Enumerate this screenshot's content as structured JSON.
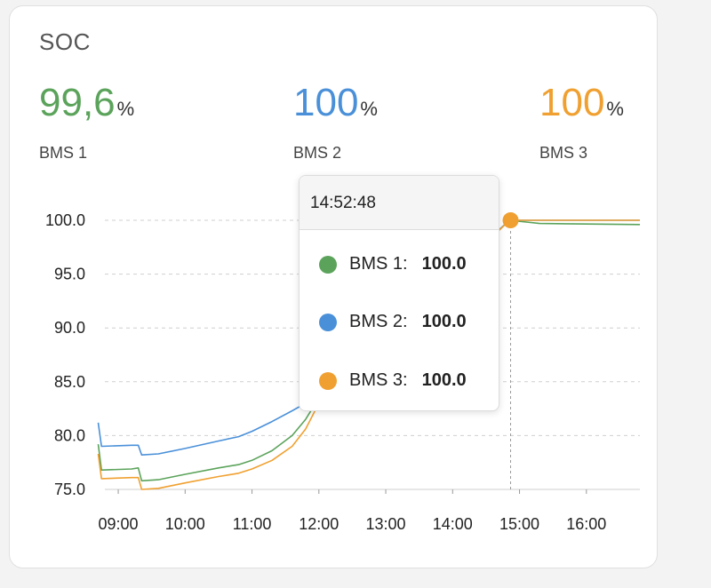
{
  "card": {
    "title": "SOC"
  },
  "stats": [
    {
      "name": "BMS 1",
      "value": "99,6",
      "unit": "%",
      "color": "#5ba35b"
    },
    {
      "name": "BMS 2",
      "value": "100",
      "unit": "%",
      "color": "#4a90d9"
    },
    {
      "name": "BMS 3",
      "value": "100",
      "unit": "%",
      "color": "#f0a030"
    }
  ],
  "tooltip": {
    "time": "14:52:48",
    "rows": [
      {
        "label": "BMS 1:",
        "value": "100.0"
      },
      {
        "label": "BMS 2:",
        "value": "100.0"
      },
      {
        "label": "BMS 3:",
        "value": "100.0"
      }
    ]
  },
  "chart_data": {
    "type": "line",
    "ylim": [
      75,
      100
    ],
    "yticks": [
      "100.0",
      "95.0",
      "90.0",
      "85.0",
      "80.0",
      "75.0"
    ],
    "xticks": [
      "09:00",
      "10:00",
      "11:00",
      "12:00",
      "13:00",
      "14:00",
      "15:00",
      "16:00"
    ],
    "grid": true,
    "legend": "none",
    "highlight": {
      "x": "14:52",
      "y": 100.0
    },
    "series": [
      {
        "name": "BMS 1",
        "color": "#5ba35b",
        "points": [
          [
            8.7,
            79.2
          ],
          [
            8.75,
            76.8
          ],
          [
            9.2,
            76.9
          ],
          [
            9.3,
            77.0
          ],
          [
            9.35,
            75.8
          ],
          [
            9.6,
            75.9
          ],
          [
            10.0,
            76.4
          ],
          [
            10.5,
            77.0
          ],
          [
            10.8,
            77.3
          ],
          [
            11.0,
            77.7
          ],
          [
            11.3,
            78.6
          ],
          [
            11.6,
            80.0
          ],
          [
            11.8,
            81.5
          ],
          [
            12.0,
            83.5
          ],
          [
            14.85,
            100.0
          ],
          [
            15.3,
            99.7
          ],
          [
            16.8,
            99.6
          ]
        ]
      },
      {
        "name": "BMS 2",
        "color": "#4a90d9",
        "points": [
          [
            8.7,
            81.2
          ],
          [
            8.75,
            79.0
          ],
          [
            9.2,
            79.1
          ],
          [
            9.3,
            79.1
          ],
          [
            9.35,
            78.2
          ],
          [
            9.6,
            78.3
          ],
          [
            10.0,
            78.8
          ],
          [
            10.5,
            79.5
          ],
          [
            10.8,
            79.9
          ],
          [
            11.0,
            80.4
          ],
          [
            11.3,
            81.3
          ],
          [
            11.6,
            82.3
          ],
          [
            11.8,
            83.0
          ],
          [
            11.85,
            83.2
          ],
          [
            14.85,
            100.0
          ],
          [
            15.3,
            100.0
          ],
          [
            16.8,
            100.0
          ]
        ]
      },
      {
        "name": "BMS 3",
        "color": "#f0a030",
        "points": [
          [
            8.7,
            78.3
          ],
          [
            8.75,
            76.0
          ],
          [
            9.2,
            76.1
          ],
          [
            9.3,
            76.1
          ],
          [
            9.35,
            75.0
          ],
          [
            9.6,
            75.1
          ],
          [
            10.0,
            75.6
          ],
          [
            10.5,
            76.2
          ],
          [
            10.8,
            76.5
          ],
          [
            11.0,
            76.9
          ],
          [
            11.3,
            77.7
          ],
          [
            11.6,
            79.0
          ],
          [
            11.8,
            80.6
          ],
          [
            12.0,
            83.0
          ],
          [
            14.85,
            100.0
          ],
          [
            15.3,
            100.0
          ],
          [
            16.8,
            100.0
          ]
        ]
      }
    ]
  }
}
